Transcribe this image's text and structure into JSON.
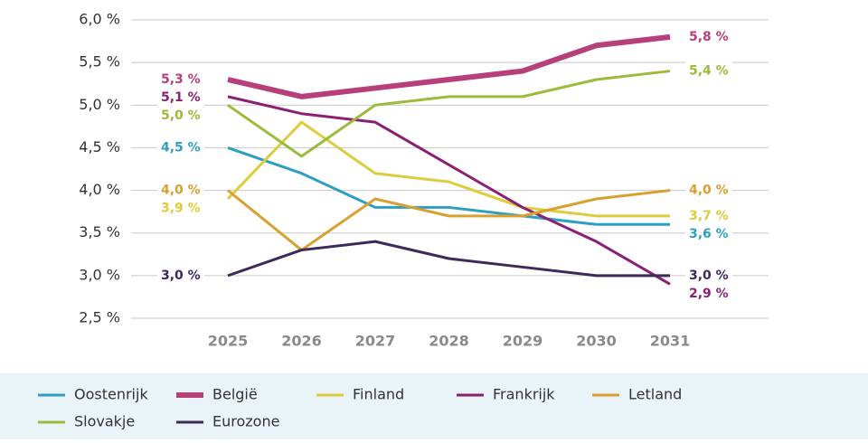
{
  "chart_data": {
    "type": "line",
    "categories": [
      "2025",
      "2026",
      "2027",
      "2028",
      "2029",
      "2030",
      "2031"
    ],
    "ylim": [
      2.5,
      6.0
    ],
    "yticks": [
      {
        "value": 2.5,
        "label": "2,5 %"
      },
      {
        "value": 3.0,
        "label": "3,0 %"
      },
      {
        "value": 3.5,
        "label": "3,5 %"
      },
      {
        "value": 4.0,
        "label": "4,0 %"
      },
      {
        "value": 4.5,
        "label": "4,5 %"
      },
      {
        "value": 5.0,
        "label": "5,0 %"
      },
      {
        "value": 5.5,
        "label": "5,5 %"
      },
      {
        "value": 6.0,
        "label": "6,0 %"
      }
    ],
    "grid": true,
    "series": [
      {
        "name": "Oostenrijk",
        "color": "#2e9fc3",
        "width": 3,
        "values": [
          4.5,
          4.2,
          3.8,
          3.8,
          3.7,
          3.6,
          3.6
        ],
        "value_labels": [
          "4,5 %",
          null,
          null,
          null,
          null,
          null,
          "3,6 %"
        ]
      },
      {
        "name": "België",
        "color": "#b8407a",
        "width": 6,
        "values": [
          5.3,
          5.1,
          5.2,
          5.3,
          5.4,
          5.7,
          5.8
        ],
        "value_labels": [
          "5,3 %",
          null,
          null,
          null,
          null,
          null,
          "5,8 %"
        ]
      },
      {
        "name": "Finland",
        "color": "#ddcc3c",
        "width": 3,
        "values": [
          3.9,
          4.8,
          4.2,
          4.1,
          3.8,
          3.7,
          3.7
        ],
        "value_labels": [
          "3,9 %",
          null,
          null,
          null,
          null,
          null,
          "3,7 %"
        ]
      },
      {
        "name": "Frankrijk",
        "color": "#8b1f74",
        "width": 3,
        "values": [
          5.1,
          4.9,
          4.8,
          4.3,
          3.8,
          3.4,
          2.9
        ],
        "value_labels": [
          "5,1 %",
          null,
          null,
          null,
          null,
          null,
          "2,9 %"
        ]
      },
      {
        "name": "Letland",
        "color": "#d9a030",
        "width": 3,
        "values": [
          4.0,
          3.3,
          3.9,
          3.7,
          3.7,
          3.9,
          4.0
        ],
        "value_labels": [
          "4,0 %",
          null,
          null,
          null,
          null,
          null,
          "4,0 %"
        ]
      },
      {
        "name": "Slovakje",
        "color": "#9dbb3a",
        "width": 3,
        "values": [
          5.0,
          4.4,
          5.0,
          5.1,
          5.1,
          5.3,
          5.4
        ],
        "value_labels": [
          "5,0 %",
          null,
          null,
          null,
          null,
          null,
          "5,4 %"
        ]
      },
      {
        "name": "Eurozone",
        "color": "#3d2a5a",
        "width": 3,
        "values": [
          3.0,
          3.3,
          3.4,
          3.2,
          3.1,
          3.0,
          3.0
        ],
        "value_labels": [
          "3,0 %",
          null,
          null,
          null,
          null,
          null,
          "3,0 %"
        ]
      }
    ]
  }
}
